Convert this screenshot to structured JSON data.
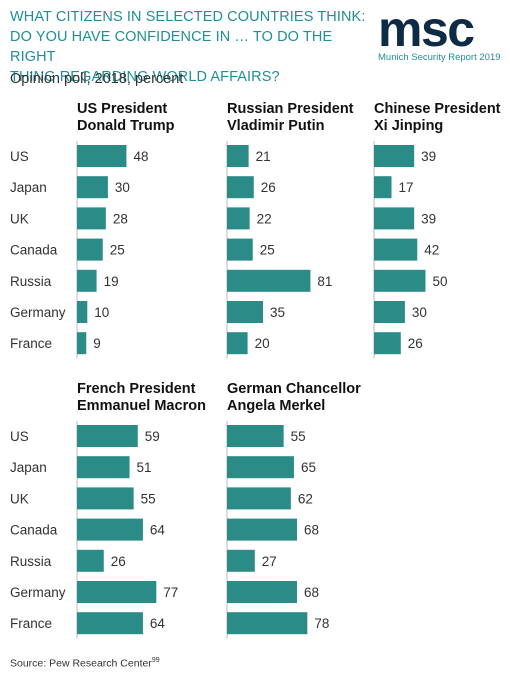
{
  "header": {
    "title_lines": [
      "WHAT CITIZENS IN SELECTED COUNTRIES THINK:",
      "DO YOU HAVE CONFIDENCE IN … TO DO THE RIGHT",
      "THING REGARDING WORLD AFFAIRS?"
    ],
    "subtitle": "Opinion poll, 2018, percent"
  },
  "logo": {
    "letters": "msc",
    "tagline": "Munich Security Report 2019"
  },
  "source": {
    "text": "Source: Pew Research Center",
    "footnote": "99"
  },
  "colors": {
    "bar": "#2b8c87",
    "accent": "#1f8f95",
    "logo": "#0d2b45",
    "label": "#333333"
  },
  "chart_data": [
    {
      "type": "bar",
      "orientation": "horizontal",
      "title_lines": [
        "US President",
        "Donald Trump"
      ],
      "categories": [
        "US",
        "Japan",
        "UK",
        "Canada",
        "Russia",
        "Germany",
        "France"
      ],
      "values": [
        48,
        30,
        28,
        25,
        19,
        10,
        9
      ]
    },
    {
      "type": "bar",
      "orientation": "horizontal",
      "title_lines": [
        "Russian President",
        "Vladimir Putin"
      ],
      "categories": [
        "US",
        "Japan",
        "UK",
        "Canada",
        "Russia",
        "Germany",
        "France"
      ],
      "values": [
        21,
        26,
        22,
        25,
        81,
        35,
        20
      ]
    },
    {
      "type": "bar",
      "orientation": "horizontal",
      "title_lines": [
        "Chinese President",
        "Xi Jinping"
      ],
      "categories": [
        "US",
        "Japan",
        "UK",
        "Canada",
        "Russia",
        "Germany",
        "France"
      ],
      "values": [
        39,
        17,
        39,
        42,
        50,
        30,
        26
      ]
    },
    {
      "type": "bar",
      "orientation": "horizontal",
      "title_lines": [
        "French President",
        "Emmanuel Macron"
      ],
      "categories": [
        "US",
        "Japan",
        "UK",
        "Canada",
        "Russia",
        "Germany",
        "France"
      ],
      "values": [
        59,
        51,
        55,
        64,
        26,
        77,
        64
      ]
    },
    {
      "type": "bar",
      "orientation": "horizontal",
      "title_lines": [
        "German Chancellor",
        "Angela Merkel"
      ],
      "categories": [
        "US",
        "Japan",
        "UK",
        "Canada",
        "Russia",
        "Germany",
        "France"
      ],
      "values": [
        55,
        65,
        62,
        68,
        27,
        68,
        78
      ]
    }
  ]
}
